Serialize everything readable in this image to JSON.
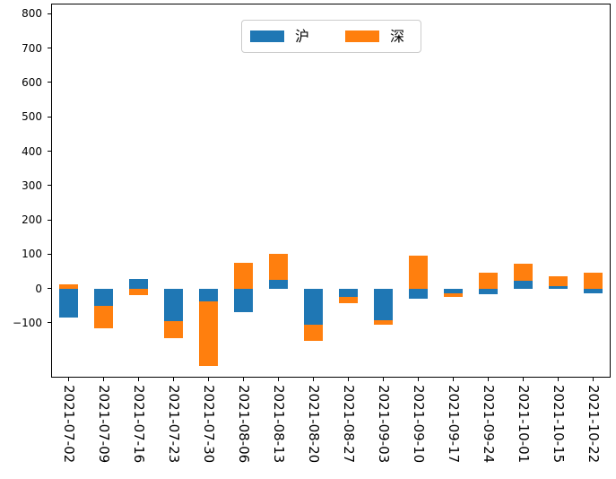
{
  "chart_data": {
    "type": "bar",
    "stacked": true,
    "title": "",
    "xlabel": "",
    "ylabel": "",
    "grid": false,
    "legend_position": "upper center",
    "categories": [
      "2021-07-02",
      "2021-07-09",
      "2021-07-16",
      "2021-07-23",
      "2021-07-30",
      "2021-08-06",
      "2021-08-13",
      "2021-08-20",
      "2021-08-27",
      "2021-09-03",
      "2021-09-10",
      "2021-09-17",
      "2021-09-24",
      "2021-10-01",
      "2021-10-15",
      "2021-10-22"
    ],
    "series": [
      {
        "key": "hu",
        "name": "沪",
        "color": "#1f77b4",
        "values": [
          -85,
          -50,
          28,
          -95,
          -37,
          -70,
          25,
          -105,
          -25,
          -92,
          -30,
          -15,
          -18,
          23,
          7,
          -15
        ]
      },
      {
        "key": "shen",
        "name": "深",
        "color": "#ff7f0e",
        "values": [
          12,
          -65,
          -20,
          -50,
          -190,
          75,
          75,
          -48,
          -17,
          -14,
          95,
          -10,
          47,
          50,
          28,
          45
        ]
      }
    ],
    "ylim": [
      -260,
      830
    ],
    "yticks": [
      -100,
      0,
      100,
      200,
      300,
      400,
      500,
      600,
      700,
      800
    ],
    "x_tick_rotation_deg": 90
  },
  "legend": {
    "items": [
      {
        "label": "沪",
        "color": "#1f77b4"
      },
      {
        "label": "深",
        "color": "#ff7f0e"
      }
    ]
  },
  "colors": {
    "background": "#ffffff",
    "spine": "#000000",
    "tick_label": "#000000"
  }
}
